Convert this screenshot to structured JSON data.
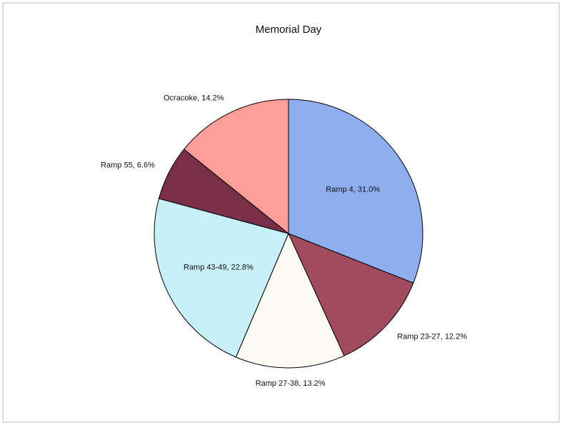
{
  "chart_data": {
    "type": "pie",
    "title": "Memorial Day",
    "values": [
      31.0,
      12.2,
      13.2,
      22.8,
      6.6,
      14.2
    ],
    "value_labels": [
      "Ramp 4, 31.0%",
      "Ramp 23-27, 12.2%",
      "Ramp 27-38, 13.2%",
      "Ramp 43-49, 22.8%",
      "Ramp 55, 6.6%",
      "Ocracoke, 14.2%"
    ],
    "colors": [
      "#8eaef0",
      "#a24a5e",
      "#fbfbf3",
      "#c8f0f8",
      "#7a2f48",
      "#fd9e98"
    ]
  }
}
